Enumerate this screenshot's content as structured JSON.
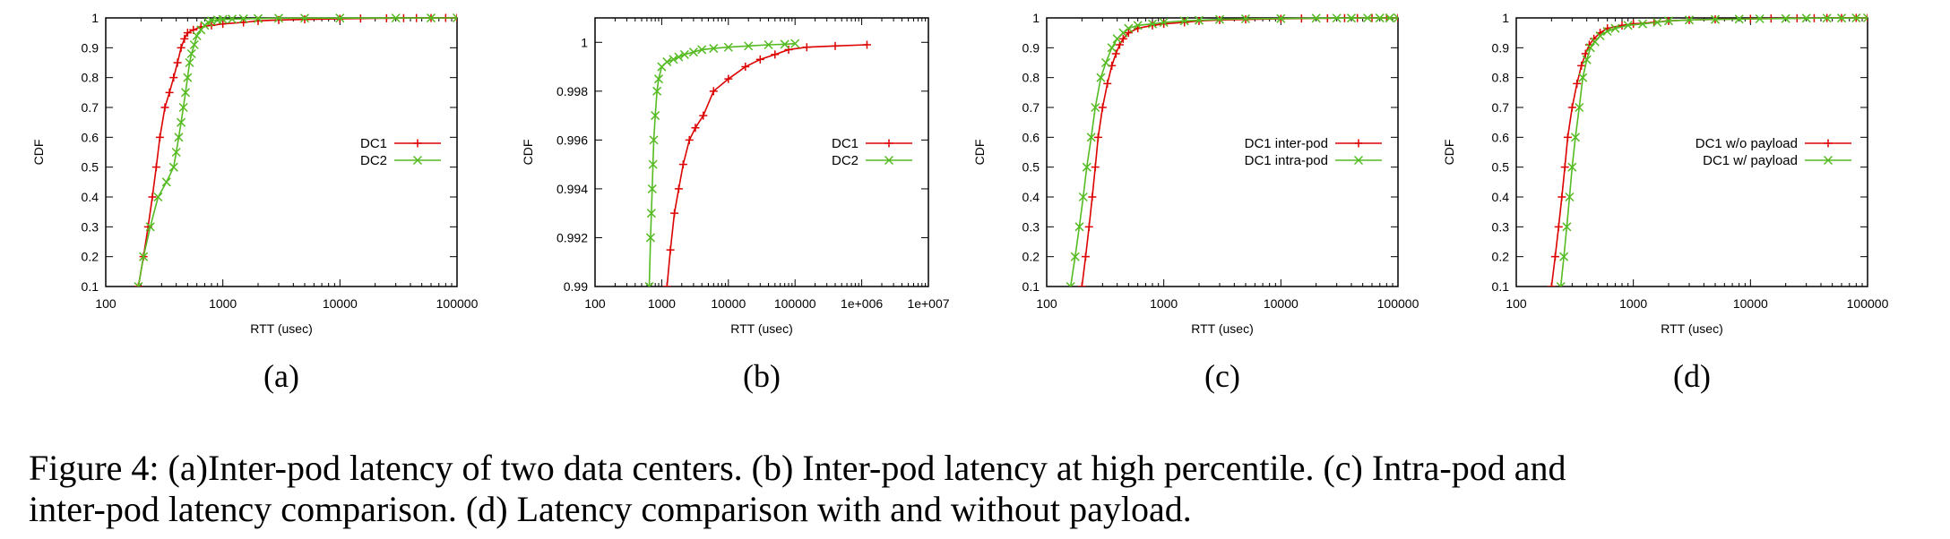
{
  "colors": {
    "series1": "#dd0000",
    "series2": "#55bb22",
    "axis": "#000000"
  },
  "caption": {
    "line1": "Figure 4: (a)Inter-pod latency of two data centers.  (b) Inter-pod latency at high percentile.  (c) Intra-pod and",
    "line2": "inter-pod latency comparison. (d) Latency comparison with and without payload."
  },
  "chart_data": [
    {
      "type": "line",
      "sublabel": "(a)",
      "xlabel": "RTT (usec)",
      "ylabel": "CDF",
      "xscale": "log",
      "xlim": [
        100,
        100000
      ],
      "ylim": [
        0.1,
        1
      ],
      "xticks": [
        100,
        1000,
        10000,
        100000
      ],
      "xtick_labels": [
        "100",
        "1000",
        "10000",
        "100000"
      ],
      "yticks": [
        0.1,
        0.2,
        0.3,
        0.4,
        0.5,
        0.6,
        0.7,
        0.8,
        0.9,
        1
      ],
      "ytick_labels": [
        "0.1",
        "0.2",
        "0.3",
        "0.4",
        "0.5",
        "0.6",
        "0.7",
        "0.8",
        "0.9",
        "1"
      ],
      "legend_position": "right",
      "series": [
        {
          "name": "DC1",
          "marker": "plus",
          "x": [
            190,
            210,
            230,
            250,
            270,
            290,
            320,
            350,
            380,
            410,
            440,
            470,
            500,
            560,
            650,
            800,
            1000,
            1500,
            2000,
            3000,
            5000,
            10000,
            15000,
            25000,
            35000,
            45000,
            60000,
            80000,
            100000
          ],
          "y": [
            0.1,
            0.2,
            0.3,
            0.4,
            0.5,
            0.6,
            0.7,
            0.75,
            0.8,
            0.85,
            0.9,
            0.93,
            0.95,
            0.96,
            0.97,
            0.975,
            0.98,
            0.985,
            0.99,
            0.993,
            0.995,
            0.997,
            0.998,
            0.999,
            0.9993,
            0.9995,
            0.9997,
            0.9999,
            1
          ]
        },
        {
          "name": "DC2",
          "marker": "cross",
          "x": [
            190,
            210,
            240,
            280,
            330,
            380,
            400,
            420,
            440,
            460,
            480,
            500,
            520,
            540,
            570,
            600,
            650,
            700,
            750,
            800,
            900,
            1000,
            1200,
            1500,
            2000,
            3000,
            5000,
            10000,
            30000,
            60000,
            100000
          ],
          "y": [
            0.1,
            0.2,
            0.3,
            0.4,
            0.45,
            0.5,
            0.55,
            0.6,
            0.65,
            0.7,
            0.75,
            0.8,
            0.85,
            0.88,
            0.91,
            0.94,
            0.96,
            0.975,
            0.985,
            0.99,
            0.993,
            0.995,
            0.996,
            0.997,
            0.998,
            0.999,
            0.9993,
            0.9995,
            0.9997,
            0.9999,
            1
          ]
        }
      ]
    },
    {
      "type": "line",
      "sublabel": "(b)",
      "xlabel": "RTT (usec)",
      "ylabel": "CDF",
      "xscale": "log",
      "xlim": [
        100,
        10000000
      ],
      "ylim": [
        0.99,
        1.001
      ],
      "xticks": [
        100,
        1000,
        10000,
        100000,
        1000000,
        10000000
      ],
      "xtick_labels": [
        "100",
        "1000",
        "10000",
        "100000",
        "1e+006",
        "1e+007"
      ],
      "yticks": [
        0.99,
        0.992,
        0.994,
        0.996,
        0.998,
        1
      ],
      "ytick_labels": [
        "0.99",
        "0.992",
        "0.994",
        "0.996",
        "0.998",
        "1"
      ],
      "legend_position": "right",
      "series": [
        {
          "name": "DC1",
          "marker": "plus",
          "x": [
            1200,
            1350,
            1550,
            1800,
            2100,
            2600,
            3200,
            4200,
            6000,
            10000,
            18000,
            30000,
            50000,
            80000,
            150000,
            400000,
            1200000
          ],
          "y": [
            0.99,
            0.9915,
            0.993,
            0.994,
            0.995,
            0.996,
            0.9965,
            0.997,
            0.998,
            0.9985,
            0.999,
            0.9993,
            0.9995,
            0.9997,
            0.9998,
            0.99985,
            0.9999
          ]
        },
        {
          "name": "DC2",
          "marker": "cross",
          "x": [
            650,
            680,
            700,
            720,
            740,
            760,
            800,
            850,
            900,
            1000,
            1200,
            1500,
            1800,
            2200,
            3000,
            4000,
            6000,
            10000,
            20000,
            40000,
            70000,
            100000
          ],
          "y": [
            0.99,
            0.992,
            0.993,
            0.994,
            0.995,
            0.996,
            0.997,
            0.998,
            0.9985,
            0.999,
            0.9992,
            0.9993,
            0.9994,
            0.9995,
            0.9996,
            0.9997,
            0.99975,
            0.9998,
            0.99985,
            0.9999,
            0.99992,
            0.99995
          ]
        }
      ]
    },
    {
      "type": "line",
      "sublabel": "(c)",
      "xlabel": "RTT (usec)",
      "ylabel": "CDF",
      "xscale": "log",
      "xlim": [
        100,
        100000
      ],
      "ylim": [
        0.1,
        1
      ],
      "xticks": [
        100,
        1000,
        10000,
        100000
      ],
      "xtick_labels": [
        "100",
        "1000",
        "10000",
        "100000"
      ],
      "yticks": [
        0.1,
        0.2,
        0.3,
        0.4,
        0.5,
        0.6,
        0.7,
        0.8,
        0.9,
        1
      ],
      "ytick_labels": [
        "0.1",
        "0.2",
        "0.3",
        "0.4",
        "0.5",
        "0.6",
        "0.7",
        "0.8",
        "0.9",
        "1"
      ],
      "legend_position": "right",
      "series": [
        {
          "name": "DC1 inter-pod",
          "marker": "plus",
          "x": [
            200,
            215,
            230,
            245,
            260,
            275,
            300,
            330,
            360,
            390,
            420,
            450,
            500,
            600,
            800,
            1000,
            1500,
            2000,
            3000,
            5000,
            10000,
            15000,
            25000,
            35000,
            45000,
            60000,
            80000,
            100000
          ],
          "y": [
            0.1,
            0.2,
            0.3,
            0.4,
            0.5,
            0.6,
            0.7,
            0.78,
            0.84,
            0.88,
            0.91,
            0.93,
            0.95,
            0.965,
            0.975,
            0.98,
            0.985,
            0.99,
            0.993,
            0.995,
            0.997,
            0.998,
            0.999,
            0.9993,
            0.9995,
            0.9997,
            0.9999,
            1
          ]
        },
        {
          "name": "DC1 intra-pod",
          "marker": "cross",
          "x": [
            160,
            175,
            190,
            205,
            220,
            240,
            260,
            290,
            320,
            360,
            400,
            450,
            500,
            600,
            800,
            1000,
            1500,
            2000,
            3000,
            5000,
            10000,
            20000,
            30000,
            40000,
            55000,
            70000,
            85000,
            100000
          ],
          "y": [
            0.1,
            0.2,
            0.3,
            0.4,
            0.5,
            0.6,
            0.7,
            0.8,
            0.85,
            0.9,
            0.93,
            0.95,
            0.965,
            0.975,
            0.98,
            0.985,
            0.99,
            0.992,
            0.995,
            0.997,
            0.998,
            0.999,
            0.9993,
            0.9995,
            0.9997,
            0.9998,
            0.9999,
            1
          ]
        }
      ]
    },
    {
      "type": "line",
      "sublabel": "(d)",
      "xlabel": "RTT (usec)",
      "ylabel": "CDF",
      "xscale": "log",
      "xlim": [
        100,
        100000
      ],
      "ylim": [
        0.1,
        1
      ],
      "xticks": [
        100,
        1000,
        10000,
        100000
      ],
      "xtick_labels": [
        "100",
        "1000",
        "10000",
        "100000"
      ],
      "yticks": [
        0.1,
        0.2,
        0.3,
        0.4,
        0.5,
        0.6,
        0.7,
        0.8,
        0.9,
        1
      ],
      "ytick_labels": [
        "0.1",
        "0.2",
        "0.3",
        "0.4",
        "0.5",
        "0.6",
        "0.7",
        "0.8",
        "0.9",
        "1"
      ],
      "legend_position": "right",
      "series": [
        {
          "name": "DC1 w/o payload",
          "marker": "plus",
          "x": [
            200,
            215,
            230,
            245,
            260,
            275,
            300,
            330,
            360,
            390,
            420,
            460,
            520,
            600,
            800,
            1000,
            1500,
            2000,
            3000,
            5000,
            10000,
            15000,
            25000,
            35000,
            45000,
            60000,
            80000,
            100000
          ],
          "y": [
            0.1,
            0.2,
            0.3,
            0.4,
            0.5,
            0.6,
            0.7,
            0.78,
            0.84,
            0.88,
            0.91,
            0.93,
            0.95,
            0.965,
            0.975,
            0.98,
            0.985,
            0.99,
            0.993,
            0.995,
            0.997,
            0.998,
            0.999,
            0.9993,
            0.9995,
            0.9997,
            0.9999,
            1
          ]
        },
        {
          "name": "DC1 w/ payload",
          "marker": "cross",
          "x": [
            240,
            255,
            270,
            285,
            300,
            320,
            345,
            370,
            400,
            430,
            470,
            520,
            600,
            700,
            900,
            1200,
            1600,
            2000,
            3000,
            5000,
            8000,
            12000,
            20000,
            30000,
            45000,
            60000,
            80000,
            100000
          ],
          "y": [
            0.1,
            0.2,
            0.3,
            0.4,
            0.5,
            0.6,
            0.7,
            0.8,
            0.86,
            0.9,
            0.92,
            0.94,
            0.955,
            0.965,
            0.975,
            0.98,
            0.985,
            0.99,
            0.993,
            0.995,
            0.996,
            0.997,
            0.998,
            0.999,
            0.9993,
            0.9995,
            0.9998,
            1
          ]
        }
      ]
    }
  ]
}
